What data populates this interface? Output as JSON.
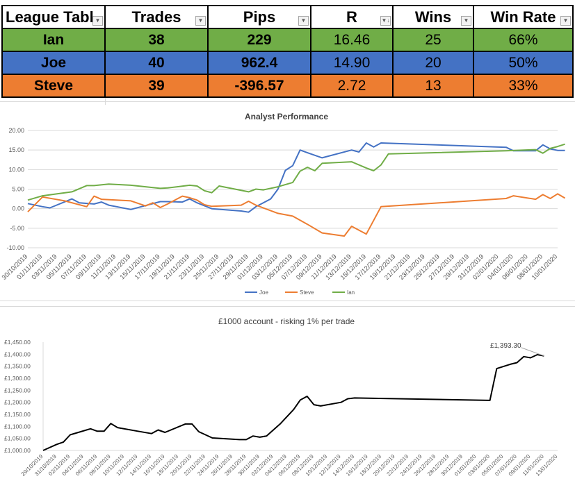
{
  "league_table": {
    "headers": [
      "League Tabl",
      "Trades",
      "Pips",
      "R",
      "Wins",
      "Win Rate"
    ],
    "rows": [
      {
        "name": "Ian",
        "trades": "38",
        "pips": "229",
        "r": "16.46",
        "wins": "25",
        "win_rate": "66%",
        "color": "#70ad47"
      },
      {
        "name": "Joe",
        "trades": "40",
        "pips": "962.4",
        "r": "14.90",
        "wins": "20",
        "win_rate": "50%",
        "color": "#4472c4"
      },
      {
        "name": "Steve",
        "trades": "39",
        "pips": "-396.57",
        "r": "2.72",
        "wins": "13",
        "win_rate": "33%",
        "color": "#ed7d31"
      }
    ]
  },
  "chart_data": [
    {
      "type": "line",
      "title": "Analyst Performance",
      "ylim": [
        -10,
        20
      ],
      "yticks": [
        "20.00",
        "15.00",
        "10.00",
        "5.00",
        "0.00",
        "-5.00",
        "-10.00"
      ],
      "x_tick_labels": [
        "30/10/2019",
        "01/11/2019",
        "03/11/2019",
        "05/11/2019",
        "07/11/2019",
        "09/11/2019",
        "11/11/2019",
        "13/11/2019",
        "15/11/2019",
        "17/11/2019",
        "19/11/2019",
        "21/11/2019",
        "23/11/2019",
        "25/11/2019",
        "27/11/2019",
        "29/11/2019",
        "01/12/2019",
        "03/12/2019",
        "05/12/2019",
        "07/12/2019",
        "09/12/2019",
        "11/12/2019",
        "13/12/2019",
        "15/12/2019",
        "17/12/2019",
        "19/12/2019",
        "21/12/2019",
        "23/12/2019",
        "25/12/2019",
        "27/12/2019",
        "29/12/2019",
        "31/12/2019",
        "02/01/2020",
        "04/01/2020",
        "06/01/2020",
        "08/01/2020",
        "10/01/2020"
      ],
      "legend_position": "bottom",
      "series": [
        {
          "name": "Joe",
          "color": "#4472c4",
          "points": [
            [
              "2019-10-30",
              1.3
            ],
            [
              "2019-11-01",
              0.5
            ],
            [
              "2019-11-02",
              0.2
            ],
            [
              "2019-11-05",
              2.5
            ],
            [
              "2019-11-06",
              1.5
            ],
            [
              "2019-11-08",
              1.2
            ],
            [
              "2019-11-09",
              1.7
            ],
            [
              "2019-11-10",
              0.9
            ],
            [
              "2019-11-13",
              -0.2
            ],
            [
              "2019-11-15",
              0.8
            ],
            [
              "2019-11-17",
              1.8
            ],
            [
              "2019-11-18",
              1.8
            ],
            [
              "2019-11-20",
              1.7
            ],
            [
              "2019-11-21",
              2.5
            ],
            [
              "2019-11-22",
              1.5
            ],
            [
              "2019-11-24",
              0.0
            ],
            [
              "2019-11-28",
              -0.6
            ],
            [
              "2019-11-29",
              -0.9
            ],
            [
              "2019-11-30",
              0.5
            ],
            [
              "2019-12-02",
              2.5
            ],
            [
              "2019-12-03",
              5.0
            ],
            [
              "2019-12-04",
              9.8
            ],
            [
              "2019-12-05",
              11.0
            ],
            [
              "2019-12-06",
              15.0
            ],
            [
              "2019-12-07",
              14.3
            ],
            [
              "2019-12-09",
              13.0
            ],
            [
              "2019-12-13",
              15.0
            ],
            [
              "2019-12-14",
              14.5
            ],
            [
              "2019-12-15",
              16.8
            ],
            [
              "2019-12-16",
              15.8
            ],
            [
              "2019-12-17",
              16.8
            ],
            [
              "2020-01-03",
              15.7
            ],
            [
              "2020-01-04",
              14.8
            ],
            [
              "2020-01-07",
              14.8
            ],
            [
              "2020-01-08",
              16.3
            ],
            [
              "2020-01-09",
              15.3
            ],
            [
              "2020-01-10",
              14.9
            ],
            [
              "2020-01-11",
              14.9
            ]
          ]
        },
        {
          "name": "Steve",
          "color": "#ed7d31",
          "points": [
            [
              "2019-10-30",
              -0.8
            ],
            [
              "2019-11-01",
              3.0
            ],
            [
              "2019-11-04",
              2.0
            ],
            [
              "2019-11-07",
              0.5
            ],
            [
              "2019-11-08",
              3.2
            ],
            [
              "2019-11-09",
              2.4
            ],
            [
              "2019-11-13",
              2.0
            ],
            [
              "2019-11-15",
              0.7
            ],
            [
              "2019-11-16",
              1.5
            ],
            [
              "2019-11-17",
              0.3
            ],
            [
              "2019-11-18",
              1.2
            ],
            [
              "2019-11-20",
              3.2
            ],
            [
              "2019-11-21",
              2.8
            ],
            [
              "2019-11-22",
              2.2
            ],
            [
              "2019-11-23",
              1.0
            ],
            [
              "2019-11-24",
              0.6
            ],
            [
              "2019-11-28",
              0.9
            ],
            [
              "2019-11-29",
              1.9
            ],
            [
              "2019-11-30",
              0.9
            ],
            [
              "2019-12-03",
              -1.2
            ],
            [
              "2019-12-05",
              -1.9
            ],
            [
              "2019-12-07",
              -4.0
            ],
            [
              "2019-12-09",
              -6.2
            ],
            [
              "2019-12-12",
              -7.0
            ],
            [
              "2019-12-13",
              -4.5
            ],
            [
              "2019-12-15",
              -6.5
            ],
            [
              "2019-12-17",
              0.5
            ],
            [
              "2020-01-03",
              2.6
            ],
            [
              "2020-01-04",
              3.3
            ],
            [
              "2020-01-07",
              2.4
            ],
            [
              "2020-01-08",
              3.6
            ],
            [
              "2020-01-09",
              2.6
            ],
            [
              "2020-01-10",
              3.8
            ],
            [
              "2020-01-11",
              2.7
            ]
          ]
        },
        {
          "name": "Ian",
          "color": "#70ad47",
          "points": [
            [
              "2019-10-30",
              2.2
            ],
            [
              "2019-11-01",
              3.3
            ],
            [
              "2019-11-03",
              3.8
            ],
            [
              "2019-11-05",
              4.3
            ],
            [
              "2019-11-07",
              5.9
            ],
            [
              "2019-11-08",
              5.9
            ],
            [
              "2019-11-10",
              6.3
            ],
            [
              "2019-11-13",
              6.0
            ],
            [
              "2019-11-15",
              5.6
            ],
            [
              "2019-11-17",
              5.2
            ],
            [
              "2019-11-18",
              5.3
            ],
            [
              "2019-11-21",
              6.0
            ],
            [
              "2019-11-22",
              5.8
            ],
            [
              "2019-11-23",
              4.6
            ],
            [
              "2019-11-24",
              4.1
            ],
            [
              "2019-11-25",
              5.8
            ],
            [
              "2019-11-29",
              4.3
            ],
            [
              "2019-11-30",
              5.0
            ],
            [
              "2019-12-01",
              4.8
            ],
            [
              "2019-12-03",
              5.6
            ],
            [
              "2019-12-05",
              6.7
            ],
            [
              "2019-12-06",
              9.6
            ],
            [
              "2019-12-07",
              10.6
            ],
            [
              "2019-12-08",
              9.7
            ],
            [
              "2019-12-09",
              11.6
            ],
            [
              "2019-12-13",
              12.0
            ],
            [
              "2019-12-15",
              10.4
            ],
            [
              "2019-12-16",
              9.7
            ],
            [
              "2019-12-17",
              11.2
            ],
            [
              "2019-12-18",
              14.0
            ],
            [
              "2020-01-03",
              14.8
            ],
            [
              "2020-01-07",
              15.1
            ],
            [
              "2020-01-08",
              14.2
            ],
            [
              "2020-01-09",
              15.4
            ],
            [
              "2020-01-10",
              15.9
            ],
            [
              "2020-01-11",
              16.5
            ]
          ]
        }
      ]
    },
    {
      "type": "line",
      "title": "£1000 account - risking 1% per trade",
      "ylim": [
        1000,
        1450
      ],
      "yticks": [
        "£1,450.00",
        "£1,400.00",
        "£1,350.00",
        "£1,300.00",
        "£1,250.00",
        "£1,200.00",
        "£1,150.00",
        "£1,100.00",
        "£1,050.00",
        "£1,000.00"
      ],
      "x_tick_labels": [
        "29/10/2019",
        "31/10/2019",
        "02/11/2019",
        "04/11/2019",
        "06/11/2019",
        "08/11/2019",
        "10/11/2019",
        "12/11/2019",
        "14/11/2019",
        "16/11/2019",
        "18/11/2019",
        "20/11/2019",
        "22/11/2019",
        "24/11/2019",
        "26/11/2019",
        "28/11/2019",
        "30/11/2019",
        "02/12/2019",
        "04/12/2019",
        "06/12/2019",
        "08/12/2019",
        "10/12/2019",
        "12/12/2019",
        "14/12/2019",
        "16/12/2019",
        "18/12/2019",
        "20/12/2019",
        "22/12/2019",
        "24/12/2019",
        "26/12/2019",
        "28/12/2019",
        "30/12/2019",
        "01/01/2020",
        "03/01/2020",
        "05/01/2020",
        "07/01/2020",
        "09/01/2020",
        "11/01/2020",
        "13/01/2020"
      ],
      "annotation": "£1,393.30",
      "series": [
        {
          "name": "",
          "color": "#000000",
          "points": [
            [
              "2019-10-29",
              1000
            ],
            [
              "2019-10-31",
              1025
            ],
            [
              "2019-11-01",
              1035
            ],
            [
              "2019-11-02",
              1065
            ],
            [
              "2019-11-05",
              1090
            ],
            [
              "2019-11-06",
              1080
            ],
            [
              "2019-11-07",
              1080
            ],
            [
              "2019-11-08",
              1112
            ],
            [
              "2019-11-09",
              1095
            ],
            [
              "2019-11-12",
              1080
            ],
            [
              "2019-11-14",
              1070
            ],
            [
              "2019-11-15",
              1085
            ],
            [
              "2019-11-16",
              1075
            ],
            [
              "2019-11-19",
              1110
            ],
            [
              "2019-11-20",
              1110
            ],
            [
              "2019-11-21",
              1078
            ],
            [
              "2019-11-23",
              1052
            ],
            [
              "2019-11-27",
              1045
            ],
            [
              "2019-11-28",
              1045
            ],
            [
              "2019-11-29",
              1060
            ],
            [
              "2019-11-30",
              1055
            ],
            [
              "2019-12-01",
              1060
            ],
            [
              "2019-12-03",
              1110
            ],
            [
              "2019-12-05",
              1170
            ],
            [
              "2019-12-06",
              1210
            ],
            [
              "2019-12-07",
              1225
            ],
            [
              "2019-12-08",
              1190
            ],
            [
              "2019-12-09",
              1185
            ],
            [
              "2019-12-12",
              1200
            ],
            [
              "2019-12-13",
              1215
            ],
            [
              "2019-12-14",
              1218
            ],
            [
              "2020-01-03",
              1208
            ],
            [
              "2020-01-04",
              1340
            ],
            [
              "2020-01-06",
              1358
            ],
            [
              "2020-01-07",
              1365
            ],
            [
              "2020-01-08",
              1390
            ],
            [
              "2020-01-09",
              1385
            ],
            [
              "2020-01-10",
              1398
            ],
            [
              "2020-01-11",
              1393
            ]
          ]
        }
      ]
    }
  ]
}
